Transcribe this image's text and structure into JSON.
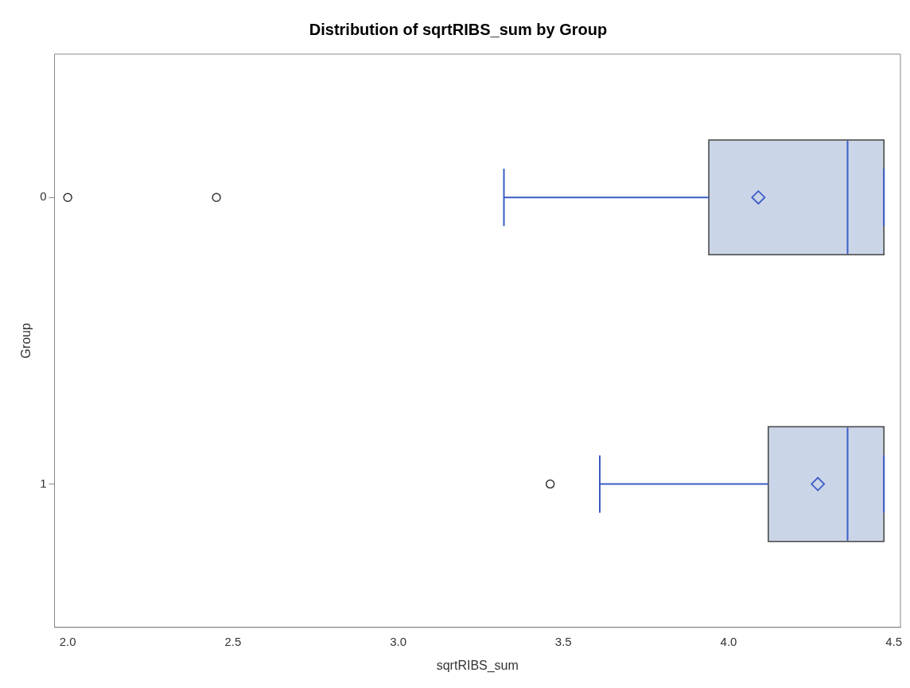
{
  "chart_data": {
    "type": "box",
    "orientation": "horizontal",
    "title": "Distribution of sqrtRIBS_sum by Group",
    "xlabel": "sqrtRIBS_sum",
    "ylabel": "Group",
    "categories": [
      "0",
      "1"
    ],
    "color": "#cbd5e8",
    "boxes": [
      {
        "low": 3.32,
        "q1": 3.94,
        "median": 4.36,
        "q3": 4.47,
        "high": 4.47,
        "mean": 4.09,
        "outliers": [
          2.0,
          2.45
        ]
      },
      {
        "low": 3.61,
        "q1": 4.12,
        "median": 4.36,
        "q3": 4.47,
        "high": 4.47,
        "mean": 4.27,
        "outliers": [
          3.46
        ]
      }
    ],
    "xlim": [
      1.96,
      4.52
    ],
    "xticks": [
      {
        "value": 2,
        "label": "2.0"
      },
      {
        "value": 2.5,
        "label": "2.5"
      },
      {
        "value": 3,
        "label": "3.0"
      },
      {
        "value": 3.5,
        "label": "3.5"
      },
      {
        "value": 4,
        "label": "4.0"
      },
      {
        "value": 4.5,
        "label": "4.5"
      }
    ],
    "grid": false,
    "legend": false
  }
}
